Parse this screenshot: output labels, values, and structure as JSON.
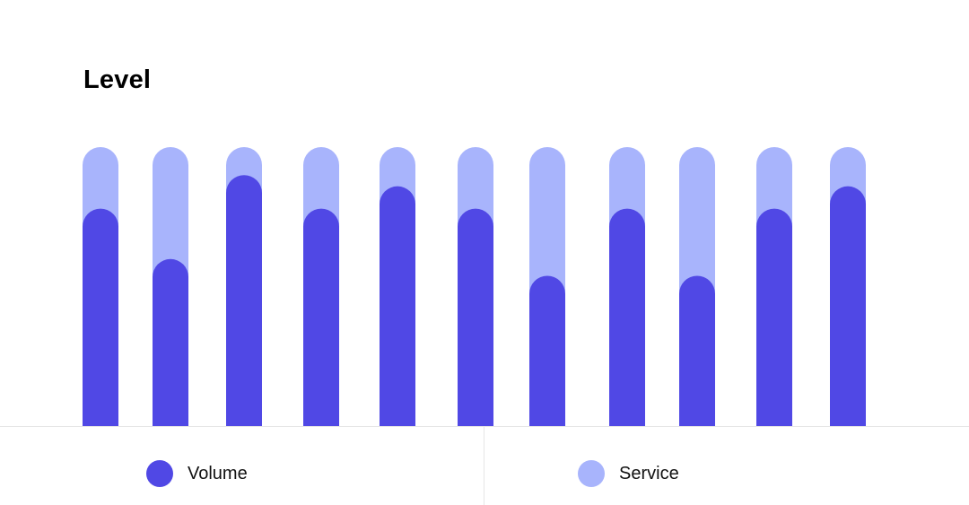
{
  "title": "Level",
  "colors": {
    "volume": "#5048e5",
    "service": "#a8b4fc"
  },
  "legend": {
    "volume_label": "Volume",
    "service_label": "Service"
  },
  "chart_data": {
    "type": "bar",
    "stacked": true,
    "title": "Level",
    "xlabel": "",
    "ylabel": "",
    "ylim": [
      0,
      100
    ],
    "categories": [
      "",
      "",
      "",
      "",
      "",
      "",
      "",
      "",
      "",
      "",
      ""
    ],
    "series": [
      {
        "name": "Volume",
        "values": [
          78,
          60,
          90,
          78,
          86,
          78,
          54,
          78,
          54,
          78,
          86
        ]
      },
      {
        "name": "Service",
        "values": [
          22,
          40,
          10,
          22,
          14,
          22,
          46,
          22,
          46,
          22,
          14
        ]
      }
    ],
    "grid": false,
    "legend_position": "bottom"
  }
}
